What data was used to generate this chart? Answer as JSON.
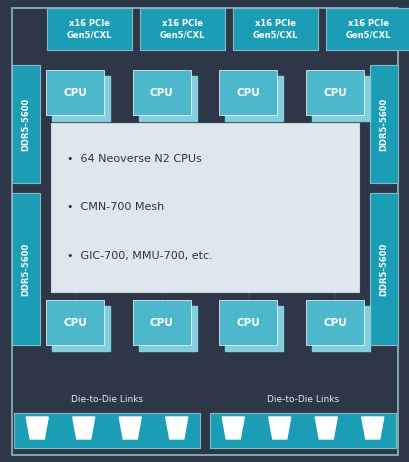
{
  "bg_color": "#2e3748",
  "teal_color": "#1a9db5",
  "light_teal": "#4db8cc",
  "lighter_teal": "#85cedd",
  "text_light": "#ddeef2",
  "box_bg": "#dde8ec",
  "box_line_color": "#c8d8dc",
  "outer_border_color": "#8ab8c4",
  "pcie_labels": [
    "x16 PCIe\nGen5/CXL",
    "x16 PCIe\nGen5/CXL",
    "x16 PCIe\nGen5/CXL",
    "x16 PCIe\nGen5/CXL"
  ],
  "ddr_labels": [
    "DDR5-5600",
    "DDR5-5600",
    "DDR5-5600",
    "DDR5-5600"
  ],
  "cpu_label": "CPU",
  "bullet_points": [
    "64 Neoverse N2 CPUs",
    "CMN-700 Mesh",
    "GIC-700, MMU-700, etc."
  ],
  "die_link_label": "Die-to-Die Links",
  "connector_count": 4,
  "grid_line_color": "#3a4a5a"
}
